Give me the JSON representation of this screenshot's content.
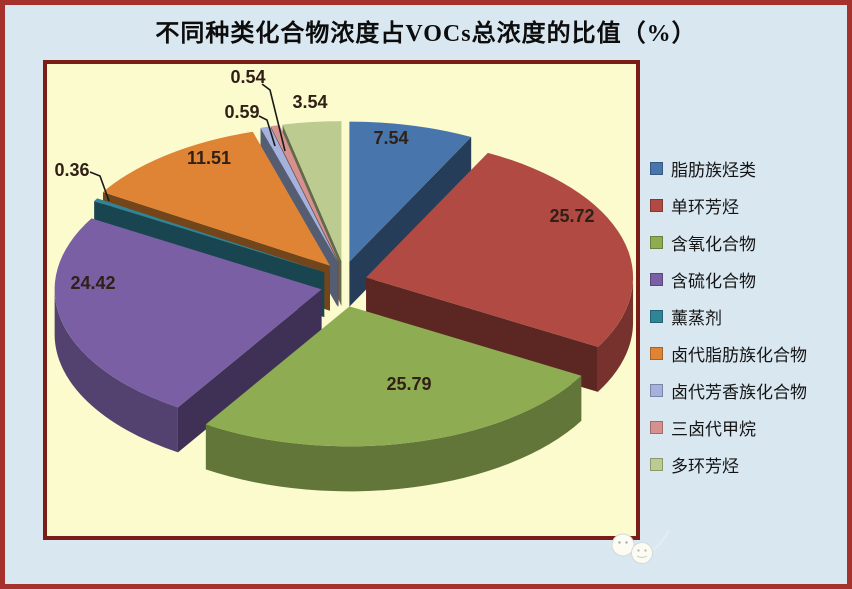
{
  "title": "不同种类化合物浓度占VOCs总浓度的比值（%）",
  "chart_data": {
    "type": "pie",
    "style": "3d-exploded",
    "title": "不同种类化合物浓度占VOCs总浓度的比值（%）",
    "unit": "%",
    "legend_position": "right",
    "start_angle_deg": 0,
    "direction": "clockwise",
    "series": [
      {
        "label": "脂肪族烃类",
        "value": 7.54,
        "color": "#4876ac"
      },
      {
        "label": "单环芳烃",
        "value": 25.72,
        "color": "#b04a43"
      },
      {
        "label": "含氧化合物",
        "value": 25.79,
        "color": "#8ead52"
      },
      {
        "label": "含硫化合物",
        "value": 24.42,
        "color": "#7a5fa5"
      },
      {
        "label": "薰蒸剂",
        "value": 0.36,
        "color": "#2f8597"
      },
      {
        "label": "卤代脂肪族化合物",
        "value": 11.51,
        "color": "#de8434"
      },
      {
        "label": "卤代芳香族化合物",
        "value": 0.59,
        "color": "#a4b2dd"
      },
      {
        "label": "三卤代甲烷",
        "value": 0.54,
        "color": "#d6918f"
      },
      {
        "label": "多环芳烃",
        "value": 3.54,
        "color": "#bccc90"
      }
    ]
  },
  "colors": {
    "outer_background": "#d9e7f0",
    "outer_border": "#a5322c",
    "plot_background": "#fbfbce",
    "plot_border": "#7b1d17",
    "label_text": "#312016",
    "leader_line": "#1a1a1a",
    "legend_text": "#141414",
    "title_text": "#0d0d0d"
  }
}
